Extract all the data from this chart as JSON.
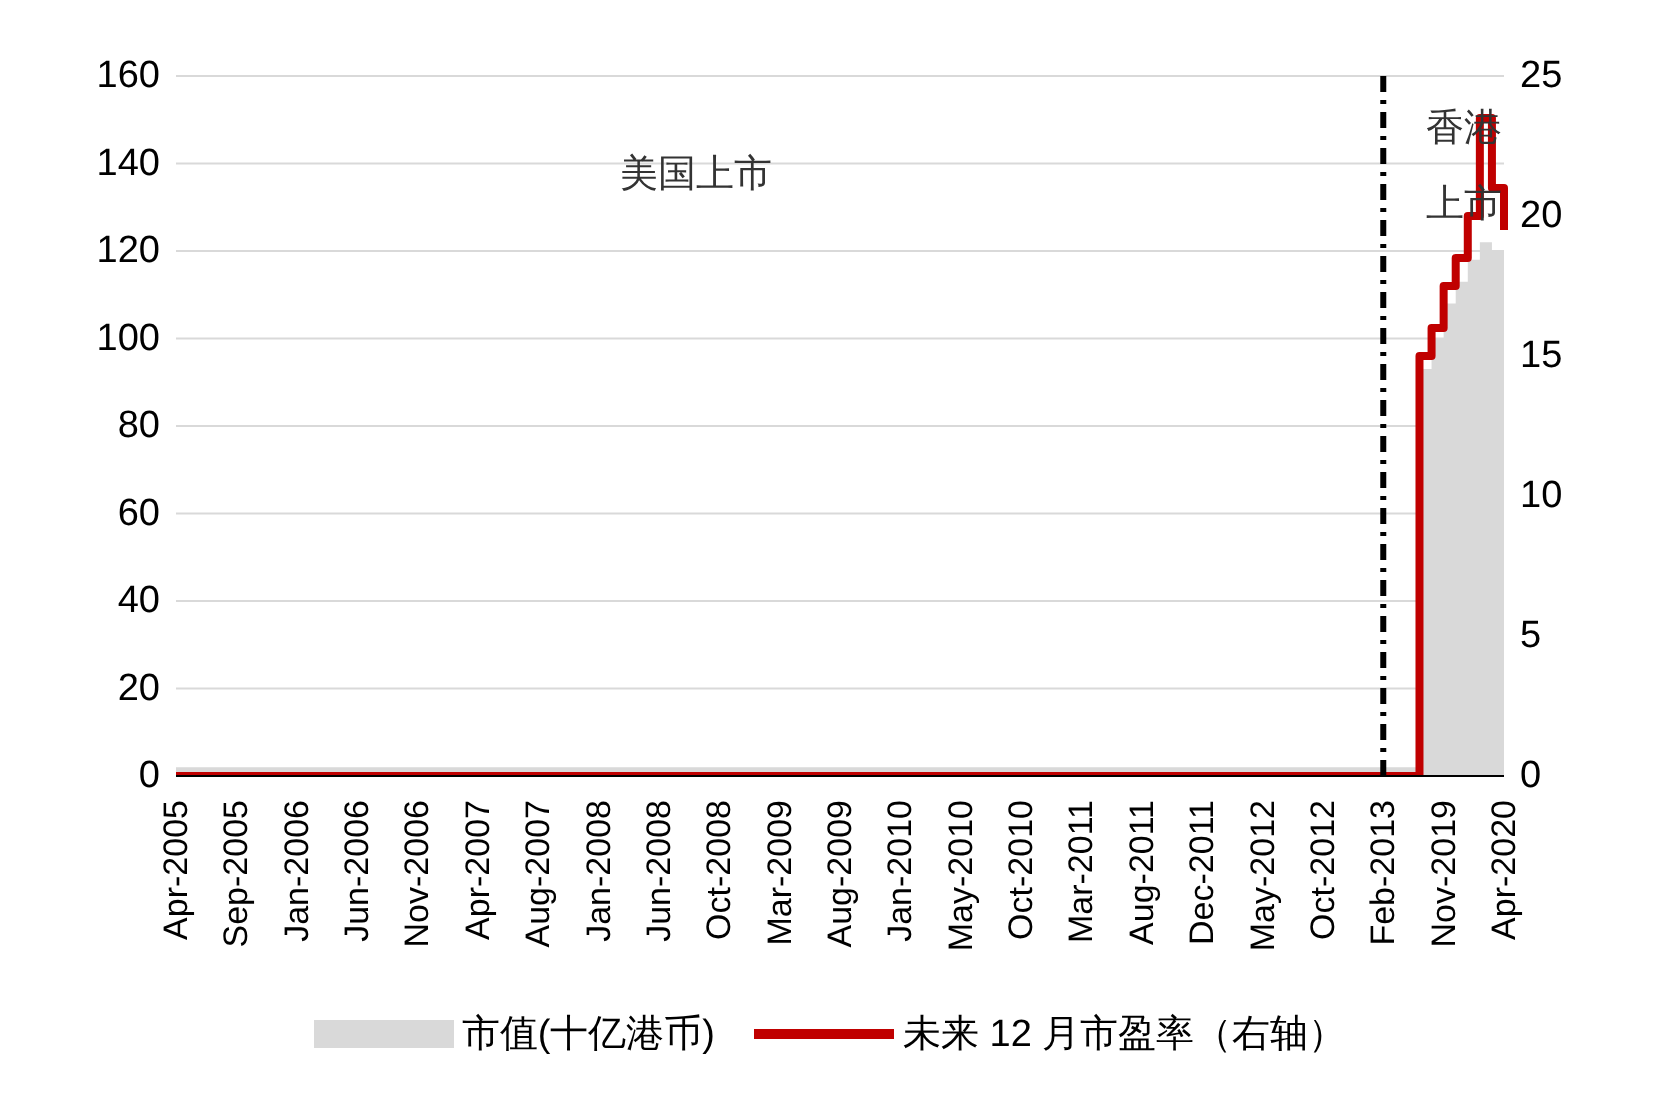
{
  "chart_data": {
    "type": "area",
    "categories": [
      "Apr-2005",
      null,
      null,
      null,
      null,
      "Sep-2005",
      null,
      null,
      null,
      null,
      "Jan-2006",
      null,
      null,
      null,
      null,
      "Jun-2006",
      null,
      null,
      null,
      null,
      "Nov-2006",
      null,
      null,
      null,
      null,
      "Apr-2007",
      null,
      null,
      null,
      null,
      "Aug-2007",
      null,
      null,
      null,
      null,
      "Jan-2008",
      null,
      null,
      null,
      null,
      "Jun-2008",
      null,
      null,
      null,
      null,
      "Oct-2008",
      null,
      null,
      null,
      null,
      "Mar-2009",
      null,
      null,
      null,
      null,
      "Aug-2009",
      null,
      null,
      null,
      null,
      "Jan-2010",
      null,
      null,
      null,
      null,
      "May-2010",
      null,
      null,
      null,
      null,
      "Oct-2010",
      null,
      null,
      null,
      null,
      "Mar-2011",
      null,
      null,
      null,
      null,
      "Aug-2011",
      null,
      null,
      null,
      null,
      "Dec-2011",
      null,
      null,
      null,
      null,
      "May-2012",
      null,
      null,
      null,
      null,
      "Oct-2012",
      null,
      null,
      null,
      null,
      "Feb-2013",
      null,
      null,
      null,
      null,
      "Nov-2019",
      null,
      null,
      null,
      null,
      "Apr-2020"
    ],
    "series": [
      {
        "name": "市值(十亿港币)",
        "color": "#d9d9d9",
        "values": [
          2,
          2,
          2,
          2,
          2,
          2,
          2,
          2,
          2,
          2,
          2,
          2,
          2,
          2,
          2,
          2,
          2,
          2,
          2,
          2,
          2,
          2,
          2,
          2,
          2,
          2,
          2,
          2,
          2,
          2,
          2,
          2,
          2,
          2,
          2,
          2,
          2,
          2,
          2,
          2,
          2,
          2,
          2,
          2,
          2,
          2,
          2,
          2,
          2,
          2,
          2,
          2,
          2,
          2,
          2,
          2,
          2,
          2,
          2,
          2,
          2,
          2,
          2,
          2,
          2,
          2,
          2,
          2,
          2,
          2,
          2,
          2,
          2,
          2,
          2,
          2,
          2,
          2,
          2,
          2,
          2,
          2,
          2,
          2,
          2,
          2,
          2,
          2,
          2,
          2,
          2,
          2,
          2,
          2,
          2,
          2,
          2,
          2,
          2,
          2,
          2,
          2,
          2,
          93,
          100,
          108,
          113,
          118,
          122,
          120,
          118
        ]
      },
      {
        "name": "未来 12 月市盈率（右轴）",
        "type": "step",
        "axis": "y2",
        "color": "#c00000",
        "values": [
          0,
          0,
          0,
          0,
          0,
          0,
          0,
          0,
          0,
          0,
          0,
          0,
          0,
          0,
          0,
          0,
          0,
          0,
          0,
          0,
          0,
          0,
          0,
          0,
          0,
          0,
          0,
          0,
          0,
          0,
          0,
          0,
          0,
          0,
          0,
          0,
          0,
          0,
          0,
          0,
          0,
          0,
          0,
          0,
          0,
          0,
          0,
          0,
          0,
          0,
          0,
          0,
          0,
          0,
          0,
          0,
          0,
          0,
          0,
          0,
          0,
          0,
          0,
          0,
          0,
          0,
          0,
          0,
          0,
          0,
          0,
          0,
          0,
          0,
          0,
          0,
          0,
          0,
          0,
          0,
          0,
          0,
          0,
          0,
          0,
          0,
          0,
          0,
          0,
          0,
          0,
          0,
          0,
          0,
          0,
          0,
          0,
          0,
          0,
          0,
          0,
          0,
          0,
          15,
          16,
          17.5,
          18.5,
          20,
          23.5,
          21,
          19.5
        ]
      }
    ],
    "ylim": [
      0,
      160
    ],
    "yticks": [
      0,
      20,
      40,
      60,
      80,
      100,
      120,
      140,
      160
    ],
    "y2lim": [
      0,
      25
    ],
    "y2ticks": [
      0,
      5,
      10,
      15,
      20,
      25
    ],
    "grid": "y",
    "legend": "bottom",
    "marker": "none",
    "line_style": "solid",
    "ref_lines": [
      {
        "axis": "x",
        "value": "Feb-2013",
        "color": "#000000",
        "line_style": "dashed"
      }
    ],
    "annotations": [
      "美国上市",
      "香港上市"
    ]
  }
}
